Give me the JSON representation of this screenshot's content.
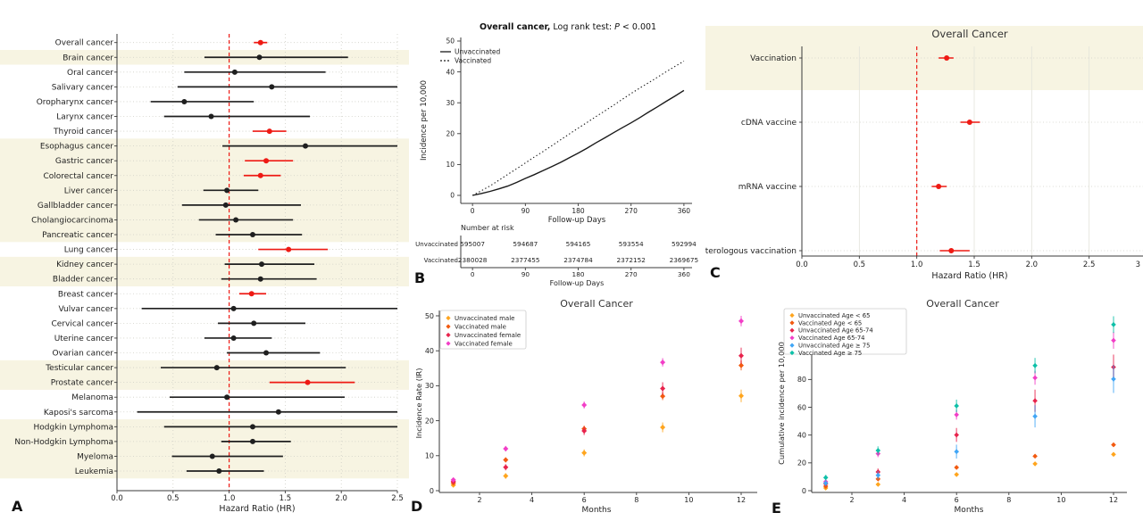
{
  "figure": {
    "background": "#ffffff",
    "panel_labels": {
      "a": "A",
      "b": "B",
      "c": "C",
      "d": "D",
      "e": "E"
    }
  },
  "colors": {
    "accent_red": "#ee1a14",
    "marker_black": "#1f1f1f",
    "band_beige": "#f7f4e2",
    "grid_gray": "#cfcfc6",
    "spine": "#3a3a3a",
    "orange": "#ffa51e",
    "orangered": "#f25a10",
    "crimson": "#e8234c",
    "magenta": "#f23ec7",
    "blue": "#41a6f6",
    "teal": "#0dc0a8",
    "line_dark": "#1a1a1a"
  },
  "chart_data": [
    {
      "panel": "A",
      "type": "forest",
      "xlabel": "Hazard Ratio (HR)",
      "xlim": [
        0.0,
        2.5
      ],
      "xticks": [
        {
          "v": 0.0,
          "label": "0.0"
        },
        {
          "v": 0.5,
          "label": "0.5"
        },
        {
          "v": 1.0,
          "label": "1.0"
        },
        {
          "v": 1.5,
          "label": "1.5"
        },
        {
          "v": 2.0,
          "label": "2.0"
        },
        {
          "v": 2.5,
          "label": "2.5"
        }
      ],
      "ref_line": 1.0,
      "rows": [
        {
          "label": "Overall cancer",
          "hr": 1.28,
          "lo": 1.22,
          "hi": 1.34,
          "sig": true,
          "band": false
        },
        {
          "label": "Brain cancer",
          "hr": 1.27,
          "lo": 0.78,
          "hi": 2.06,
          "sig": false,
          "band": true
        },
        {
          "label": "Oral cancer",
          "hr": 1.05,
          "lo": 0.6,
          "hi": 1.86,
          "sig": false,
          "band": false
        },
        {
          "label": "Salivary cancer",
          "hr": 1.38,
          "lo": 0.54,
          "hi": 2.5,
          "sig": false,
          "band": false
        },
        {
          "label": "Oropharynx cancer",
          "hr": 0.6,
          "lo": 0.3,
          "hi": 1.22,
          "sig": false,
          "band": false
        },
        {
          "label": "Larynx cancer",
          "hr": 0.84,
          "lo": 0.42,
          "hi": 1.72,
          "sig": false,
          "band": false
        },
        {
          "label": "Thyroid cancer",
          "hr": 1.36,
          "lo": 1.21,
          "hi": 1.51,
          "sig": true,
          "band": false
        },
        {
          "label": "Esophagus cancer",
          "hr": 1.68,
          "lo": 0.94,
          "hi": 2.5,
          "sig": false,
          "band": true
        },
        {
          "label": "Gastric cancer",
          "hr": 1.33,
          "lo": 1.14,
          "hi": 1.57,
          "sig": true,
          "band": true
        },
        {
          "label": "Colorectal cancer",
          "hr": 1.28,
          "lo": 1.13,
          "hi": 1.46,
          "sig": true,
          "band": true
        },
        {
          "label": "Liver cancer",
          "hr": 0.98,
          "lo": 0.77,
          "hi": 1.26,
          "sig": false,
          "band": true
        },
        {
          "label": "Gallbladder cancer",
          "hr": 0.97,
          "lo": 0.58,
          "hi": 1.64,
          "sig": false,
          "band": true
        },
        {
          "label": "Cholangiocarcinoma",
          "hr": 1.06,
          "lo": 0.73,
          "hi": 1.57,
          "sig": false,
          "band": true
        },
        {
          "label": "Pancreatic cancer",
          "hr": 1.21,
          "lo": 0.88,
          "hi": 1.65,
          "sig": false,
          "band": true
        },
        {
          "label": "Lung cancer",
          "hr": 1.53,
          "lo": 1.26,
          "hi": 1.88,
          "sig": true,
          "band": false
        },
        {
          "label": "Kidney cancer",
          "hr": 1.29,
          "lo": 0.96,
          "hi": 1.76,
          "sig": false,
          "band": true
        },
        {
          "label": "Bladder cancer",
          "hr": 1.28,
          "lo": 0.93,
          "hi": 1.78,
          "sig": false,
          "band": true
        },
        {
          "label": "Breast cancer",
          "hr": 1.2,
          "lo": 1.09,
          "hi": 1.33,
          "sig": true,
          "band": false
        },
        {
          "label": "Vulvar cancer",
          "hr": 1.04,
          "lo": 0.22,
          "hi": 2.5,
          "sig": false,
          "band": false
        },
        {
          "label": "Cervical cancer",
          "hr": 1.22,
          "lo": 0.9,
          "hi": 1.68,
          "sig": false,
          "band": false
        },
        {
          "label": "Uterine cancer",
          "hr": 1.04,
          "lo": 0.78,
          "hi": 1.38,
          "sig": false,
          "band": false
        },
        {
          "label": "Ovarian cancer",
          "hr": 1.33,
          "lo": 0.98,
          "hi": 1.81,
          "sig": false,
          "band": false
        },
        {
          "label": "Testicular cancer",
          "hr": 0.89,
          "lo": 0.39,
          "hi": 2.04,
          "sig": false,
          "band": true
        },
        {
          "label": "Prostate cancer",
          "hr": 1.7,
          "lo": 1.36,
          "hi": 2.12,
          "sig": true,
          "band": true
        },
        {
          "label": "Melanoma",
          "hr": 0.98,
          "lo": 0.47,
          "hi": 2.03,
          "sig": false,
          "band": false
        },
        {
          "label": "Kaposi's sarcoma",
          "hr": 1.44,
          "lo": 0.18,
          "hi": 2.5,
          "sig": false,
          "band": false
        },
        {
          "label": "Hodgkin Lymphoma",
          "hr": 1.21,
          "lo": 0.42,
          "hi": 2.5,
          "sig": false,
          "band": true
        },
        {
          "label": "Non-Hodgkin Lymphoma",
          "hr": 1.21,
          "lo": 0.93,
          "hi": 1.55,
          "sig": false,
          "band": true
        },
        {
          "label": "Myeloma",
          "hr": 0.85,
          "lo": 0.49,
          "hi": 1.48,
          "sig": false,
          "band": true
        },
        {
          "label": "Leukemia",
          "hr": 0.91,
          "lo": 0.62,
          "hi": 1.31,
          "sig": false,
          "band": true
        }
      ]
    },
    {
      "panel": "B",
      "type": "km",
      "title": {
        "bold": "Overall cancer,",
        "mid": " Log rank test: ",
        "italic": "P",
        "rest": " < 0.001"
      },
      "ylabel": "Incidence per 10,000",
      "xlabel": "Follow-up Days",
      "xticks": [
        0,
        90,
        180,
        270,
        360
      ],
      "yticks": [
        0,
        10,
        20,
        30,
        40,
        50
      ],
      "series": [
        {
          "name": "Unvaccinated",
          "style": "solid",
          "x": [
            0,
            15,
            30,
            45,
            60,
            75,
            90,
            105,
            120,
            135,
            150,
            165,
            180,
            195,
            210,
            225,
            240,
            255,
            270,
            285,
            300,
            315,
            330,
            345,
            360
          ],
          "y": [
            0,
            0.6,
            1.3,
            2.1,
            3.0,
            4.2,
            5.5,
            6.7,
            8.0,
            9.3,
            10.7,
            12.2,
            13.7,
            15.3,
            17.0,
            18.6,
            20.3,
            21.9,
            23.5,
            25.2,
            27.0,
            28.7,
            30.5,
            32.2,
            34.0
          ]
        },
        {
          "name": "Vaccinated",
          "style": "dotted",
          "x": [
            0,
            15,
            30,
            45,
            60,
            75,
            90,
            105,
            120,
            135,
            150,
            165,
            180,
            195,
            210,
            225,
            240,
            255,
            270,
            285,
            300,
            315,
            330,
            345,
            360
          ],
          "y": [
            0,
            1.5,
            3.1,
            4.9,
            6.8,
            8.6,
            10.5,
            12.4,
            14.2,
            16.1,
            18.0,
            19.9,
            21.8,
            23.6,
            25.5,
            27.3,
            29.2,
            31.1,
            33.0,
            34.8,
            36.5,
            38.3,
            40.1,
            41.8,
            43.5
          ]
        }
      ],
      "risk_table": {
        "title": "Number at risk",
        "xlabel": "Follow-up Days",
        "xticks": [
          0,
          90,
          180,
          270,
          360
        ],
        "rows": [
          {
            "name": "Unvaccinated",
            "counts": [
              "595007",
              "594687",
              "594165",
              "593554",
              "592994"
            ]
          },
          {
            "name": "Vaccinated",
            "counts": [
              "2380028",
              "2377455",
              "2374784",
              "2372152",
              "2369675"
            ]
          }
        ]
      }
    },
    {
      "panel": "C",
      "type": "forest",
      "title": "Overall Cancer",
      "xlabel": "Hazard Ratio (HR)",
      "xlim": [
        0.0,
        3.0
      ],
      "xticks": [
        {
          "v": 0.0,
          "label": "0.0"
        },
        {
          "v": 0.5,
          "label": "0.5"
        },
        {
          "v": 1.0,
          "label": "1.0"
        },
        {
          "v": 1.5,
          "label": "1.5"
        },
        {
          "v": 2.0,
          "label": "2.0"
        },
        {
          "v": 2.5,
          "label": "2.5"
        },
        {
          "v": 3.0,
          "label": "3"
        }
      ],
      "ref_line": 1.0,
      "rows": [
        {
          "label": "Vaccination",
          "hr": 1.26,
          "lo": 1.19,
          "hi": 1.32,
          "sig": true,
          "band": true
        },
        {
          "label": "cDNA vaccine",
          "hr": 1.46,
          "lo": 1.38,
          "hi": 1.55,
          "sig": true,
          "band": false
        },
        {
          "label": "mRNA vaccine",
          "hr": 1.19,
          "lo": 1.13,
          "hi": 1.26,
          "sig": true,
          "band": false
        },
        {
          "label": "Heterologous vaccination",
          "hr": 1.3,
          "lo": 1.2,
          "hi": 1.46,
          "sig": true,
          "band": false
        }
      ]
    },
    {
      "panel": "D",
      "type": "scatter",
      "title": "Overall Cancer",
      "ylabel": "Incidence Rate (IR)",
      "xlabel": "Months",
      "x": [
        1,
        3,
        6,
        9,
        12
      ],
      "xticks": [
        2,
        4,
        6,
        8,
        10,
        12
      ],
      "yticks": [
        0,
        10,
        20,
        30,
        40,
        50
      ],
      "series": [
        {
          "name": "Unvaccinated male",
          "color_key": "orange",
          "y": [
            1.6,
            4.2,
            10.8,
            18.1,
            27.1
          ],
          "err": [
            0.6,
            0.8,
            1.0,
            1.4,
            1.8
          ]
        },
        {
          "name": "Vaccinated male",
          "color_key": "orangered",
          "y": [
            2.2,
            8.8,
            17.7,
            27.0,
            35.8
          ],
          "err": [
            0.5,
            0.7,
            0.9,
            1.1,
            1.4
          ]
        },
        {
          "name": "Unvaccinated female",
          "color_key": "crimson",
          "y": [
            2.6,
            6.7,
            17.1,
            29.2,
            38.6
          ],
          "err": [
            0.6,
            0.9,
            1.2,
            1.8,
            2.3
          ]
        },
        {
          "name": "Vaccinated female",
          "color_key": "magenta",
          "y": [
            3.1,
            12.0,
            24.5,
            36.7,
            48.5
          ],
          "err": [
            0.5,
            0.8,
            1.0,
            1.2,
            1.5
          ]
        }
      ]
    },
    {
      "panel": "E",
      "type": "scatter",
      "title": "Overall Cancer",
      "ylabel": "Cumulative incidence per 10,000",
      "xlabel": "Months",
      "x": [
        1,
        3,
        6,
        9,
        12
      ],
      "xticks": [
        2,
        4,
        6,
        8,
        10,
        12
      ],
      "yticks": [
        0,
        20,
        40,
        60,
        80,
        100,
        120
      ],
      "series": [
        {
          "name": "Unvaccinated Age < 65",
          "color_key": "orange",
          "y": [
            1.9,
            4.5,
            11.6,
            19.3,
            26.1
          ],
          "err": [
            0.5,
            0.7,
            0.9,
            1.1,
            1.3
          ]
        },
        {
          "name": "Vaccinated Age < 65",
          "color_key": "orangered",
          "y": [
            3.2,
            8.4,
            16.7,
            24.8,
            33.0
          ],
          "err": [
            0.5,
            0.7,
            0.9,
            1.1,
            1.3
          ]
        },
        {
          "name": "Unvaccinated Age 65-74",
          "color_key": "crimson",
          "y": [
            4.9,
            13.5,
            40.1,
            64.7,
            88.9
          ],
          "err": [
            1.5,
            2.5,
            5.0,
            8.0,
            9.0
          ]
        },
        {
          "name": "Vaccinated Age 65-74",
          "color_key": "magenta",
          "y": [
            6.4,
            26.6,
            54.6,
            81.2,
            108.1
          ],
          "err": [
            1.5,
            2.5,
            3.5,
            5.0,
            6.0
          ]
        },
        {
          "name": "Unvaccinated Age ≥ 75",
          "color_key": "blue",
          "y": [
            5.4,
            11.1,
            28.1,
            53.5,
            80.3
          ],
          "err": [
            2.0,
            3.0,
            5.0,
            8.0,
            10.0
          ]
        },
        {
          "name": "Vaccinated Age ≥ 75",
          "color_key": "teal",
          "y": [
            9.4,
            28.9,
            61.0,
            90.0,
            119.5
          ],
          "err": [
            2.0,
            3.0,
            4.5,
            5.5,
            6.0
          ]
        }
      ]
    }
  ]
}
